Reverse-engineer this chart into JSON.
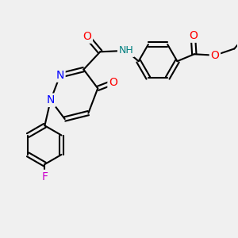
{
  "background_color": "#f0f0f0",
  "atom_colors": {
    "C": "#000000",
    "N": "#0000ff",
    "O": "#ff0000",
    "F": "#cc00cc",
    "H": "#008080"
  },
  "bond_color": "#000000",
  "bond_width": 1.5,
  "figsize": [
    3.0,
    3.0
  ],
  "dpi": 100
}
